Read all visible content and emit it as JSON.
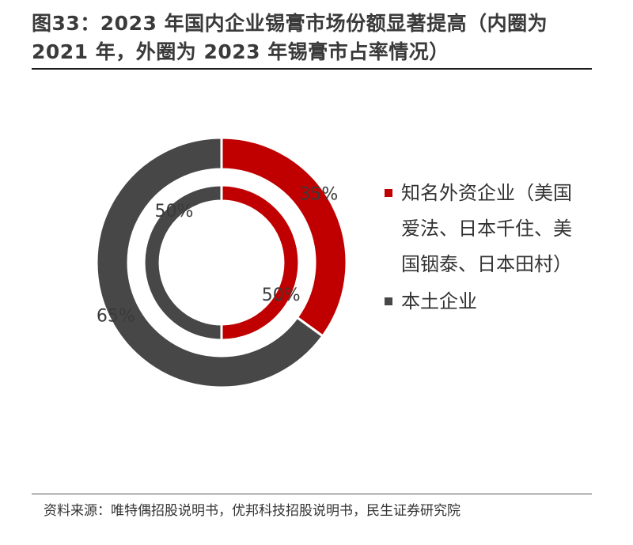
{
  "title": "图33：2023 年国内企业锡膏市场份额显著提高（内圈为 2021 年，外圈为 2023 年锡膏市占率情况）",
  "source": "资料来源：唯特偶招股说明书，优邦科技招股说明书，民生证券研究院",
  "colors": {
    "foreign": "#c00000",
    "domestic": "#474747",
    "ring_border": "#ffffff"
  },
  "legend": [
    {
      "label": "知名外资企业（美国爱法、日本千住、美国铟泰、日本田村）",
      "color_key": "foreign"
    },
    {
      "label": "本土企业",
      "color_key": "domestic"
    }
  ],
  "chart_data": {
    "type": "donut",
    "title": "图33：2023 年国内企业锡膏市场份额显著提高（内圈为 2021 年，外圈为 2023 年锡膏市占率情况）",
    "categories": [
      "知名外资企业（美国爱法、日本千住、美国铟泰、日本田村）",
      "本土企业"
    ],
    "series": [
      {
        "name": "2021",
        "ring": "inner",
        "values": [
          50,
          50
        ],
        "labels": [
          "50%",
          "50%"
        ]
      },
      {
        "name": "2023",
        "ring": "outer",
        "values": [
          35,
          65
        ],
        "labels": [
          "35%",
          "65%"
        ]
      }
    ],
    "legend_position": "right"
  }
}
